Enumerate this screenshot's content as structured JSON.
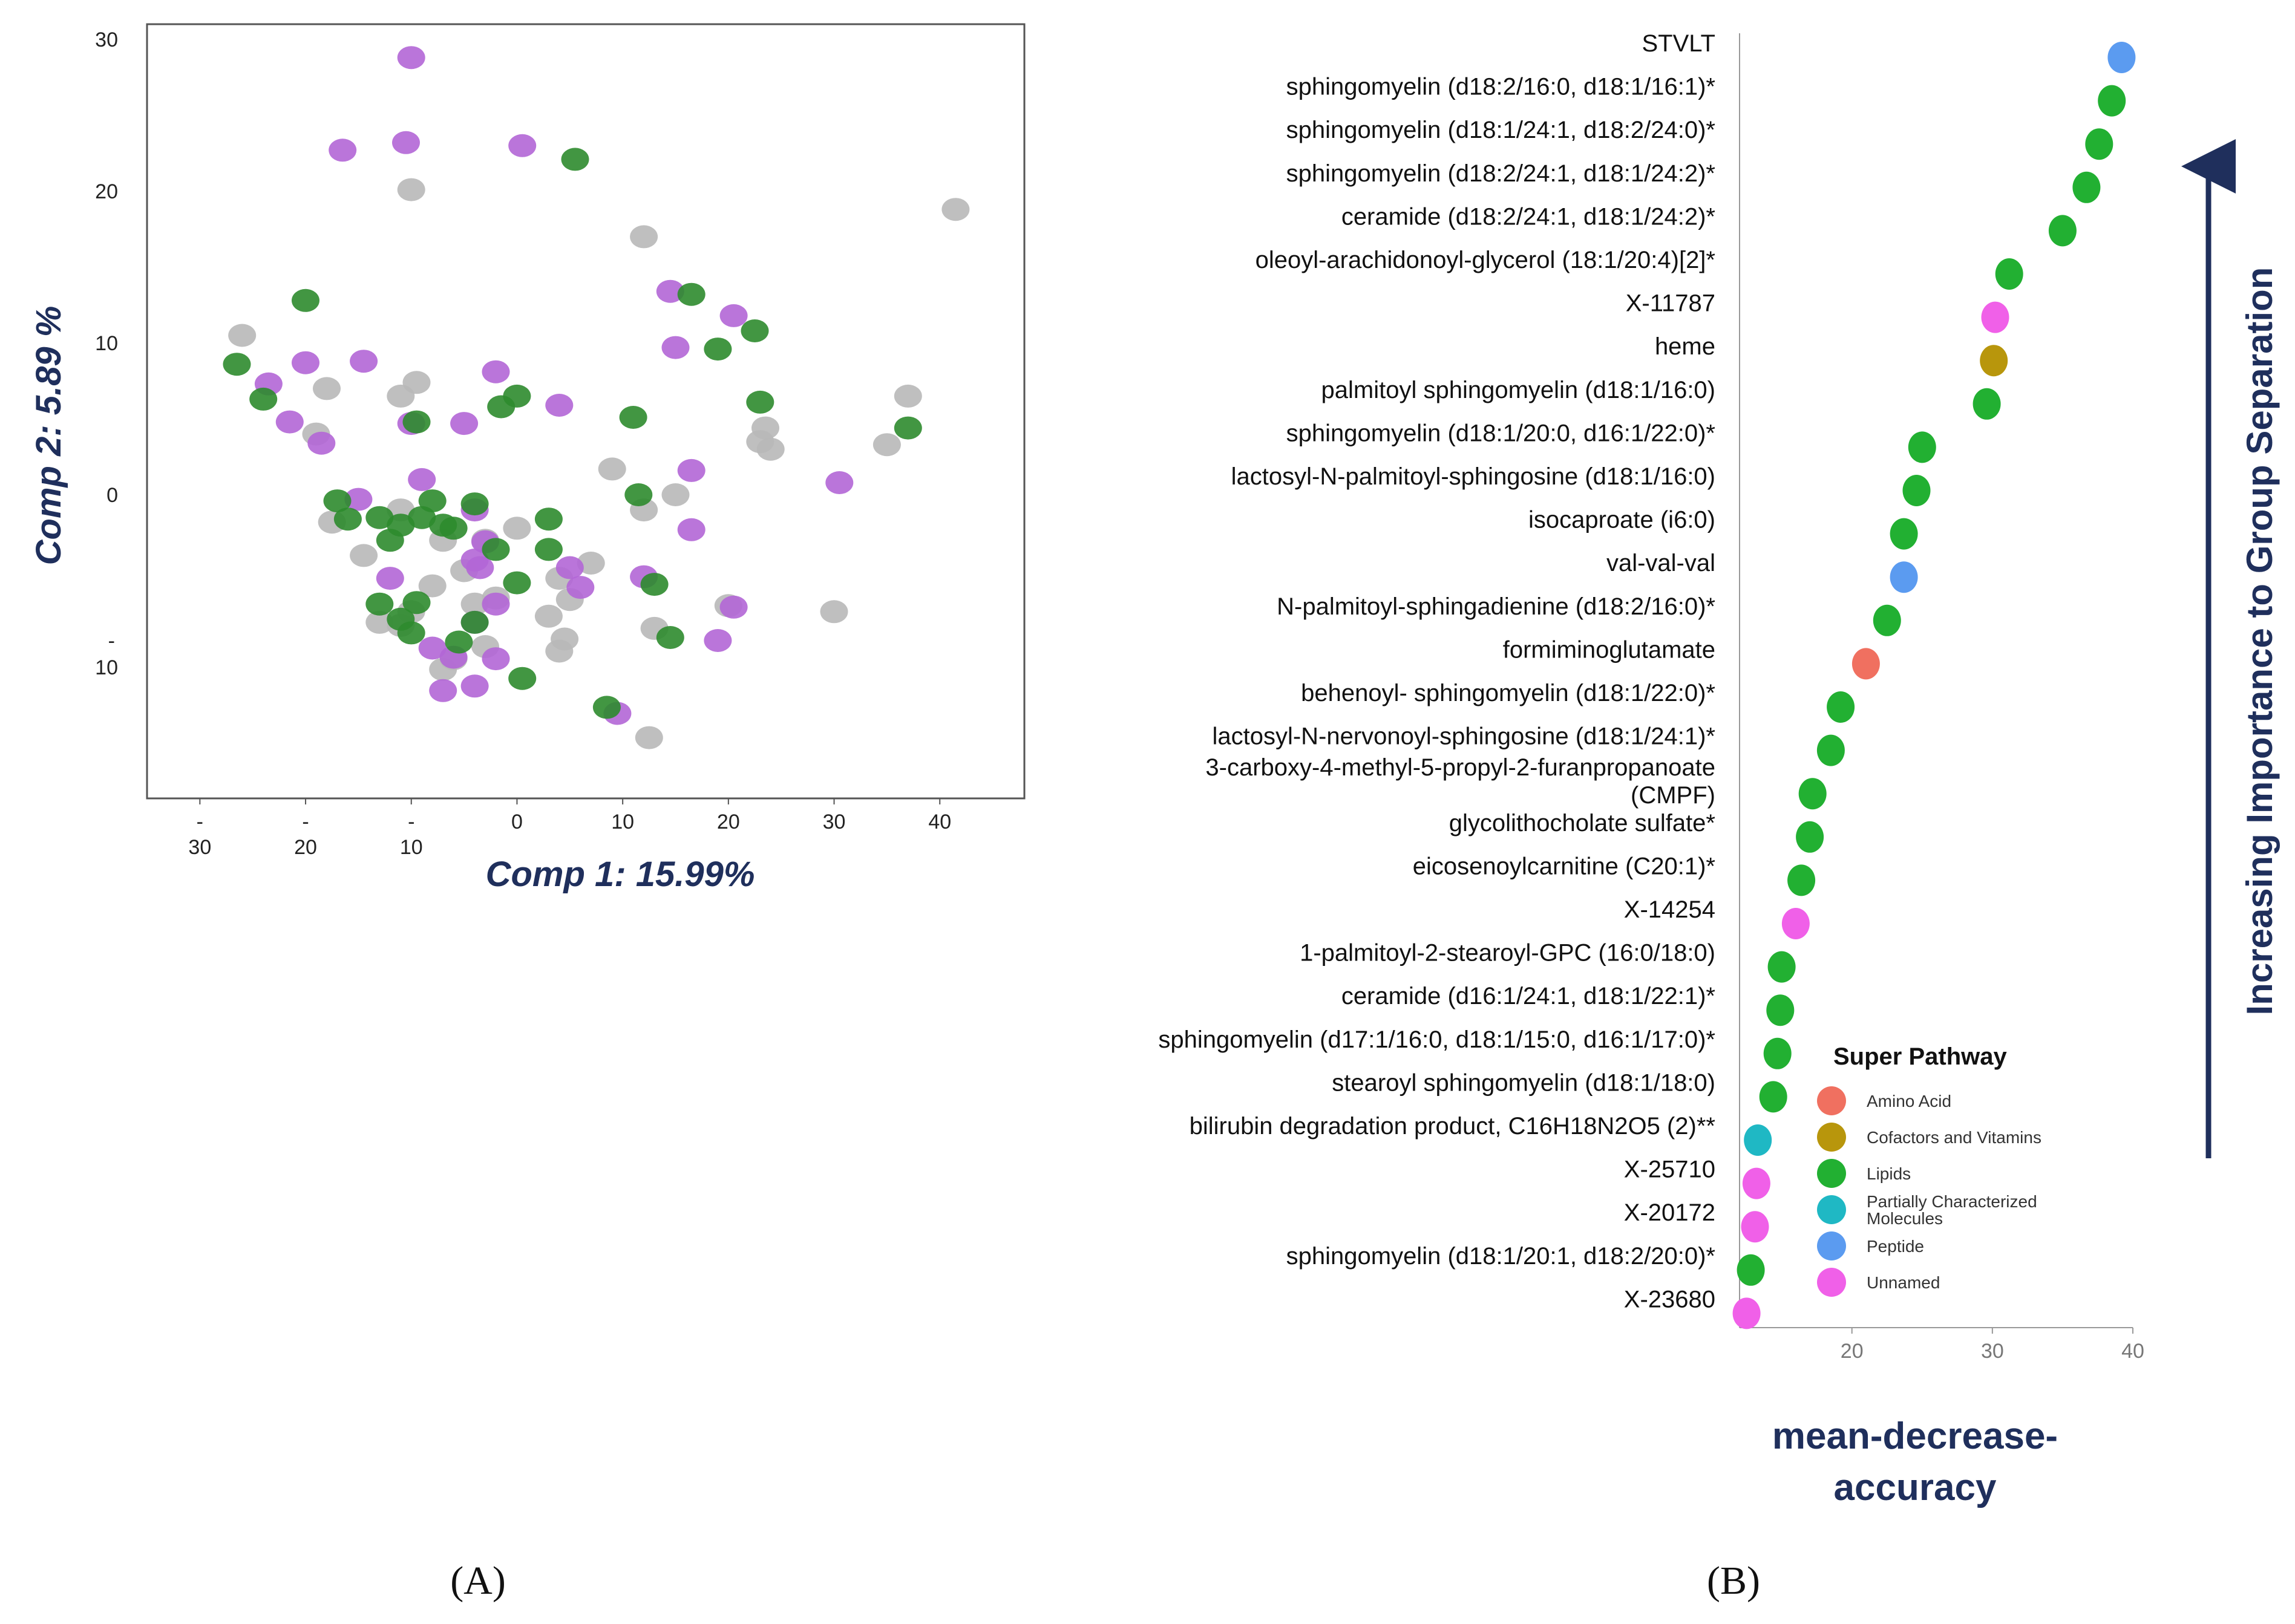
{
  "panel_a": {
    "label": "(A)",
    "colors": {
      "purple": "#b266d6",
      "green": "#2e8b2e",
      "gray": "#b8b8b8"
    },
    "chart_data": {
      "type": "scatter",
      "xlabel": "Comp 1: 15.99%",
      "ylabel": "Comp 2: 5.89 %",
      "xlim": [
        -35,
        48
      ],
      "ylim": [
        -20,
        31
      ],
      "x_ticks": [
        {
          "value": -30,
          "line1": "-",
          "line2": "30"
        },
        {
          "value": -20,
          "line1": "-",
          "line2": "20"
        },
        {
          "value": -10,
          "line1": "-",
          "line2": "10"
        },
        {
          "value": 0,
          "line1": "0",
          "line2": ""
        },
        {
          "value": 10,
          "line1": "10",
          "line2": ""
        },
        {
          "value": 20,
          "line1": "20",
          "line2": ""
        },
        {
          "value": 30,
          "line1": "30",
          "line2": ""
        },
        {
          "value": 40,
          "line1": "40",
          "line2": ""
        }
      ],
      "y_ticks": [
        {
          "value": 30,
          "line1": "30",
          "line2": ""
        },
        {
          "value": 20,
          "line1": "20",
          "line2": ""
        },
        {
          "value": 10,
          "line1": "10",
          "line2": ""
        },
        {
          "value": 0,
          "line1": "0",
          "line2": ""
        },
        {
          "value": -10,
          "line1": "-",
          "line2": "10"
        }
      ],
      "series": [
        {
          "name": "purple",
          "points": [
            [
              -10,
              28.8
            ],
            [
              -16.5,
              22.7
            ],
            [
              -10.5,
              23.2
            ],
            [
              0.5,
              23
            ],
            [
              14.5,
              13.4
            ],
            [
              20.5,
              11.8
            ],
            [
              15,
              9.7
            ],
            [
              -20,
              8.7
            ],
            [
              -14.5,
              8.8
            ],
            [
              -23.5,
              7.3
            ],
            [
              -21.5,
              4.8
            ],
            [
              -18.5,
              3.4
            ],
            [
              -10,
              4.7
            ],
            [
              -5,
              4.7
            ],
            [
              -2,
              8.1
            ],
            [
              4,
              5.9
            ],
            [
              16.5,
              1.6
            ],
            [
              30.5,
              0.8
            ],
            [
              -9,
              1
            ],
            [
              -15,
              -0.3
            ],
            [
              -4,
              -1
            ],
            [
              -3,
              -3.1
            ],
            [
              -4,
              -4.3
            ],
            [
              -12,
              -5.5
            ],
            [
              -3.5,
              -4.8
            ],
            [
              -2,
              -7.2
            ],
            [
              5,
              -4.8
            ],
            [
              6,
              -6.1
            ],
            [
              12,
              -5.4
            ],
            [
              -8,
              -10.1
            ],
            [
              -4,
              -8.4
            ],
            [
              -6,
              -10.7
            ],
            [
              -2,
              -10.8
            ],
            [
              16.5,
              -2.3
            ],
            [
              19,
              -9.6
            ],
            [
              20.5,
              -7.4
            ],
            [
              -7,
              -12.9
            ],
            [
              -4,
              -12.6
            ],
            [
              9.5,
              -14.4
            ]
          ]
        },
        {
          "name": "green",
          "points": [
            [
              5.5,
              22.1
            ],
            [
              -20,
              12.8
            ],
            [
              16.5,
              13.2
            ],
            [
              22.5,
              10.8
            ],
            [
              -26.5,
              8.6
            ],
            [
              19,
              9.6
            ],
            [
              -24,
              6.3
            ],
            [
              -9.5,
              4.8
            ],
            [
              0,
              6.5
            ],
            [
              -1.5,
              5.8
            ],
            [
              23,
              6.1
            ],
            [
              11,
              5.1
            ],
            [
              37,
              4.4
            ],
            [
              -17,
              -0.4
            ],
            [
              -16,
              -1.6
            ],
            [
              -13,
              -1.5
            ],
            [
              -11,
              -2
            ],
            [
              -9,
              -1.5
            ],
            [
              -8,
              -0.4
            ],
            [
              -4,
              -0.6
            ],
            [
              -7,
              -2
            ],
            [
              -6,
              -2.2
            ],
            [
              -12,
              -3
            ],
            [
              -2,
              -3.6
            ],
            [
              3,
              -1.6
            ],
            [
              3,
              -3.6
            ],
            [
              0,
              -5.8
            ],
            [
              11.5,
              0
            ],
            [
              -13,
              -7.2
            ],
            [
              -11,
              -8.2
            ],
            [
              -10,
              -9.1
            ],
            [
              -9.5,
              -7.1
            ],
            [
              -4,
              -8.4
            ],
            [
              -5.5,
              -9.7
            ],
            [
              13,
              -5.9
            ],
            [
              14.5,
              -9.4
            ],
            [
              0.5,
              -12.1
            ],
            [
              8.5,
              -14
            ]
          ]
        },
        {
          "name": "gray",
          "points": [
            [
              -10,
              20.1
            ],
            [
              12,
              17
            ],
            [
              41.5,
              18.8
            ],
            [
              -26,
              10.5
            ],
            [
              -18,
              7
            ],
            [
              -9.5,
              7.4
            ],
            [
              -11,
              6.5
            ],
            [
              -19,
              4
            ],
            [
              23.5,
              4.4
            ],
            [
              24,
              3
            ],
            [
              23,
              3.5
            ],
            [
              37,
              6.5
            ],
            [
              35,
              3.3
            ],
            [
              9,
              1.7
            ],
            [
              12,
              -1
            ],
            [
              15,
              0
            ],
            [
              -17.5,
              -1.8
            ],
            [
              -11,
              -1
            ],
            [
              -14.5,
              -4
            ],
            [
              -7,
              -3
            ],
            [
              -3,
              -3
            ],
            [
              -5,
              -5
            ],
            [
              0,
              -2.2
            ],
            [
              7,
              -4.5
            ],
            [
              4,
              -5.5
            ],
            [
              5,
              -6.9
            ],
            [
              -8,
              -6
            ],
            [
              -10,
              -7.7
            ],
            [
              -13,
              -8.4
            ],
            [
              -11,
              -8.6
            ],
            [
              -4,
              -7.2
            ],
            [
              -2,
              -6.8
            ],
            [
              3,
              -8
            ],
            [
              4.5,
              -9.5
            ],
            [
              4,
              -10.3
            ],
            [
              -7,
              -11.5
            ],
            [
              -6,
              -10.8
            ],
            [
              -3,
              -10
            ],
            [
              13,
              -8.8
            ],
            [
              20,
              -7.3
            ],
            [
              30,
              -7.7
            ],
            [
              12.5,
              -16
            ]
          ]
        }
      ]
    }
  },
  "panel_b": {
    "label": "(B)",
    "arrow_label": "Increasing Importance to Group Separation",
    "legend": {
      "title": "Super Pathway",
      "items": [
        {
          "name": "Amino Acid",
          "color": "#f07060"
        },
        {
          "name": "Cofactors and Vitamins",
          "color": "#b8960c"
        },
        {
          "name": "Lipids",
          "color": "#22b032"
        },
        {
          "name": "Partially Characterized Molecules",
          "color": "#1fb8c4",
          "line1": "Partially Characterized",
          "line2": "Molecules"
        },
        {
          "name": "Peptide",
          "color": "#5b9bf0"
        },
        {
          "name": "Unnamed",
          "color": "#f060e8"
        }
      ]
    },
    "chart_data": {
      "type": "dot",
      "xlabel_line1": "mean-decrease-",
      "xlabel_line2": "accuracy",
      "xlim": [
        12,
        40
      ],
      "x_ticks": [
        20,
        30,
        40
      ],
      "metabolites": [
        {
          "name": "STVLT",
          "value": 39.2,
          "pathway": "Peptide"
        },
        {
          "name": "sphingomyelin (d18:2/16:0, d18:1/16:1)*",
          "value": 38.5,
          "pathway": "Lipids"
        },
        {
          "name": "sphingomyelin (d18:1/24:1, d18:2/24:0)*",
          "value": 37.6,
          "pathway": "Lipids"
        },
        {
          "name": "sphingomyelin (d18:2/24:1, d18:1/24:2)*",
          "value": 36.7,
          "pathway": "Lipids"
        },
        {
          "name": "ceramide (d18:2/24:1, d18:1/24:2)*",
          "value": 35.0,
          "pathway": "Lipids"
        },
        {
          "name": "oleoyl-arachidonoyl-glycerol (18:1/20:4)[2]*",
          "value": 31.2,
          "pathway": "Lipids"
        },
        {
          "name": "X-11787",
          "value": 30.2,
          "pathway": "Unnamed"
        },
        {
          "name": "heme",
          "value": 30.1,
          "pathway": "Cofactors and Vitamins"
        },
        {
          "name": "palmitoyl sphingomyelin (d18:1/16:0)",
          "value": 29.6,
          "pathway": "Lipids"
        },
        {
          "name": "sphingomyelin (d18:1/20:0, d16:1/22:0)*",
          "value": 25.0,
          "pathway": "Lipids"
        },
        {
          "name": "lactosyl-N-palmitoyl-sphingosine (d18:1/16:0)",
          "value": 24.6,
          "pathway": "Lipids"
        },
        {
          "name": "isocaproate (i6:0)",
          "value": 23.7,
          "pathway": "Lipids"
        },
        {
          "name": "val-val-val",
          "value": 23.7,
          "pathway": "Peptide"
        },
        {
          "name": "N-palmitoyl-sphingadienine (d18:2/16:0)*",
          "value": 22.5,
          "pathway": "Lipids"
        },
        {
          "name": "formiminoglutamate",
          "value": 21.0,
          "pathway": "Amino Acid"
        },
        {
          "name": "behenoyl- sphingomyelin (d18:1/22:0)*",
          "value": 19.2,
          "pathway": "Lipids"
        },
        {
          "name": "lactosyl-N-nervonoyl-sphingosine (d18:1/24:1)*",
          "value": 18.5,
          "pathway": "Lipids"
        },
        {
          "name": "3-carboxy-4-methyl-5-propyl-2-furanpropanoate (CMPF)",
          "line1": "3-carboxy-4-methyl-5-propyl-2-furanpropanoate",
          "line2": "(CMPF)",
          "value": 17.2,
          "pathway": "Lipids"
        },
        {
          "name": "glycolithocholate sulfate*",
          "value": 17.0,
          "pathway": "Lipids"
        },
        {
          "name": "eicosenoylcarnitine (C20:1)*",
          "value": 16.4,
          "pathway": "Lipids"
        },
        {
          "name": "X-14254",
          "value": 16.0,
          "pathway": "Unnamed"
        },
        {
          "name": "1-palmitoyl-2-stearoyl-GPC (16:0/18:0)",
          "value": 15.0,
          "pathway": "Lipids"
        },
        {
          "name": "ceramide (d16:1/24:1, d18:1/22:1)*",
          "value": 14.9,
          "pathway": "Lipids"
        },
        {
          "name": "sphingomyelin (d17:1/16:0, d18:1/15:0, d16:1/17:0)*",
          "value": 14.7,
          "pathway": "Lipids"
        },
        {
          "name": "stearoyl sphingomyelin (d18:1/18:0)",
          "value": 14.4,
          "pathway": "Lipids"
        },
        {
          "name": "bilirubin degradation product, C16H18N2O5 (2)**",
          "value": 13.3,
          "pathway": "Partially Characterized Molecules"
        },
        {
          "name": "X-25710",
          "value": 13.2,
          "pathway": "Unnamed"
        },
        {
          "name": "X-20172",
          "value": 13.1,
          "pathway": "Unnamed"
        },
        {
          "name": "sphingomyelin (d18:1/20:1, d18:2/20:0)*",
          "value": 12.8,
          "pathway": "Lipids"
        },
        {
          "name": "X-23680",
          "value": 12.5,
          "pathway": "Unnamed"
        }
      ]
    }
  }
}
